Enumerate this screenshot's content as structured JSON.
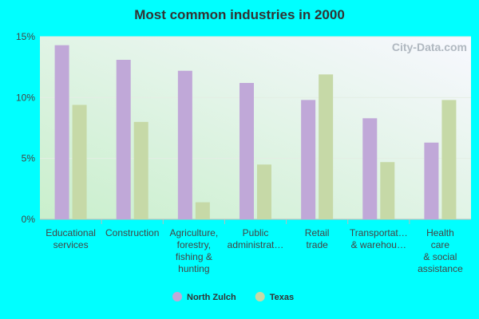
{
  "chart_data": {
    "type": "bar",
    "title": "Most common industries in 2000",
    "categories": [
      "Educational\nservices",
      "Construction",
      "Agriculture,\nforestry,\nfishing &\nhunting",
      "Public\nadministrat…",
      "Retail\ntrade",
      "Transportat…\n& warehou…",
      "Health\ncare\n& social\nassistance"
    ],
    "series": [
      {
        "name": "North Zulch",
        "color": "#c0a8d8",
        "values": [
          14.3,
          13.1,
          12.2,
          11.2,
          9.8,
          8.3,
          6.3
        ]
      },
      {
        "name": "Texas",
        "color": "#c6d9a7",
        "values": [
          9.4,
          8.0,
          1.4,
          4.5,
          11.9,
          4.7,
          9.8
        ]
      }
    ],
    "ylim": [
      0,
      15
    ],
    "yticks": [
      {
        "value": 0,
        "label": "0%"
      },
      {
        "value": 5,
        "label": "5%"
      },
      {
        "value": 10,
        "label": "10%"
      },
      {
        "value": 15,
        "label": "15%"
      }
    ],
    "grid": true,
    "watermark": "City-Data.com"
  }
}
